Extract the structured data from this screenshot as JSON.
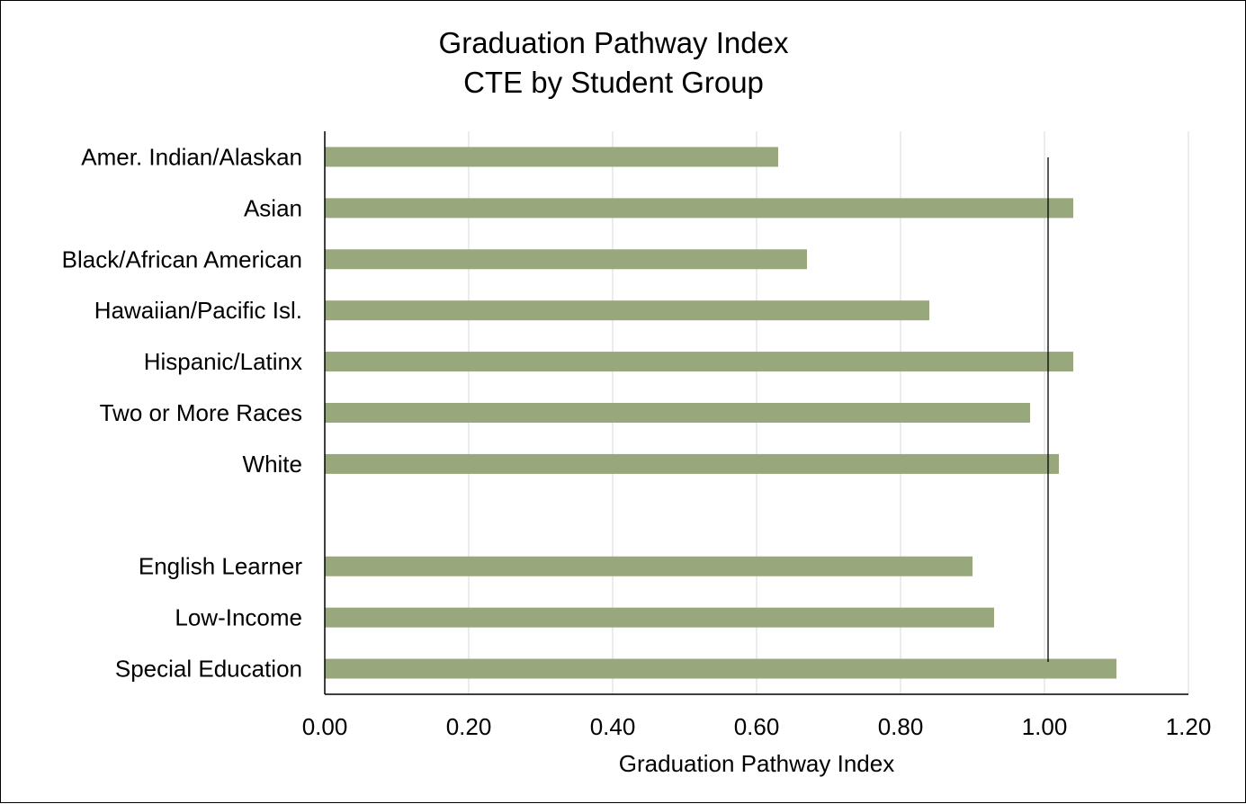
{
  "chart_data": {
    "type": "bar",
    "orientation": "horizontal",
    "title": "Graduation Pathway Index",
    "subtitle": "CTE by Student Group",
    "xlabel": "Graduation Pathway Index",
    "ylabel": "",
    "categories": [
      "Amer. Indian/Alaskan",
      "Asian",
      "Black/African American",
      "Hawaiian/Pacific Isl.",
      "Hispanic/Latinx",
      "Two or More Races",
      "White",
      "",
      "English Learner",
      "Low-Income",
      "Special Education"
    ],
    "values": [
      0.63,
      1.04,
      0.67,
      0.84,
      1.04,
      0.98,
      1.02,
      null,
      0.9,
      0.93,
      1.1
    ],
    "xlim": [
      0,
      1.2
    ],
    "xticks": [
      "0.00",
      "0.20",
      "0.40",
      "0.60",
      "0.80",
      "1.00",
      "1.20"
    ],
    "tick_values": [
      0,
      0.2,
      0.4,
      0.6,
      0.8,
      1.0,
      1.2
    ],
    "reference_line": 1.0,
    "grid": "vertical",
    "bar_color": "#98a77c",
    "grid_color": "#d9d9d9",
    "axis_color": "#000000"
  }
}
